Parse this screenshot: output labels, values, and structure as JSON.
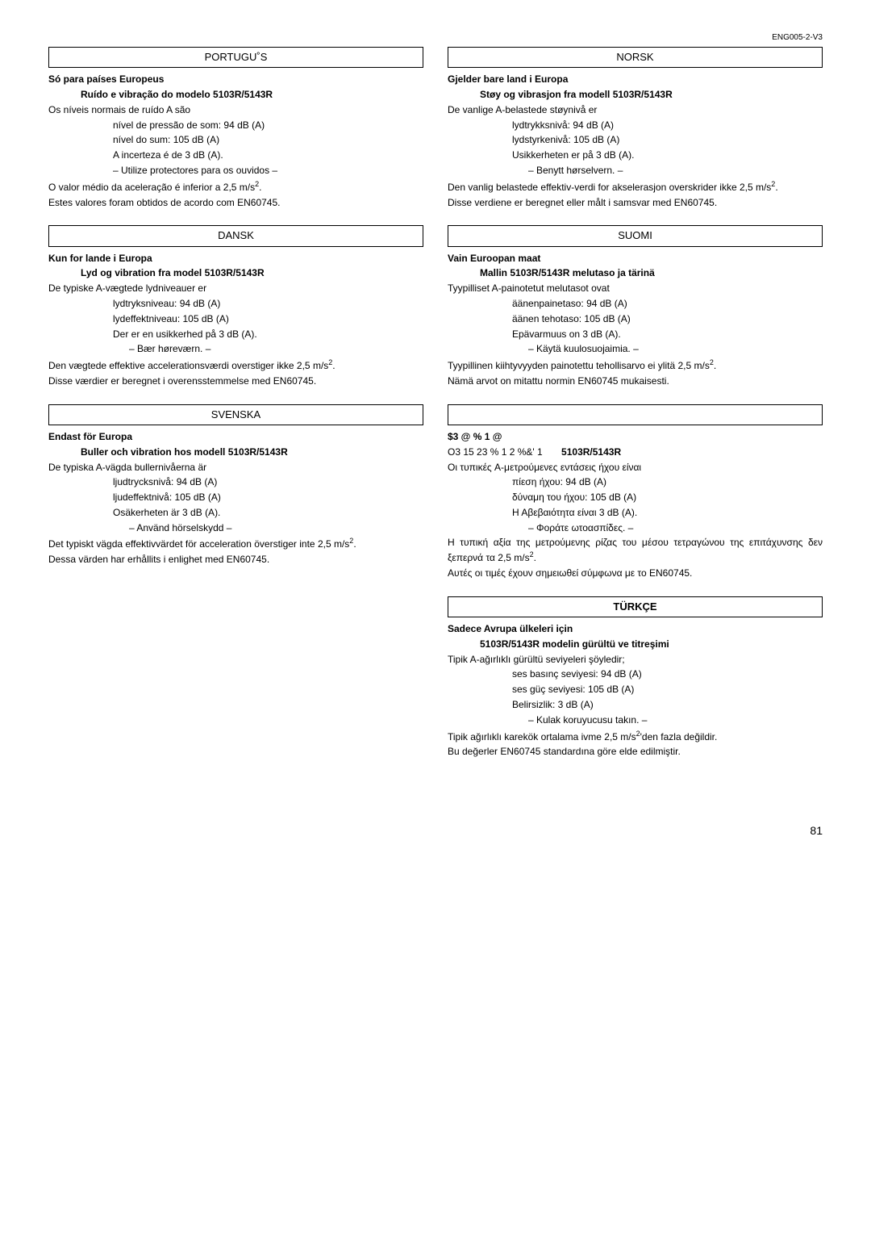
{
  "docref": "ENG005-2-V3",
  "pagenum": "81",
  "left": [
    {
      "lang": "PORTUGU˚S",
      "lang_bold": false,
      "h1": "Só para países Europeus",
      "h2": "Ruído e vibração do modelo 5103R/5143R",
      "intro": "Os níveis normais de ruído A são",
      "l1": "nível de pressão de som: 94 dB (A)",
      "l2": "nível do sum: 105 dB (A)",
      "l3": "A incerteza é de 3 dB (A).",
      "l4": "– Utilize protectores para os ouvidos –",
      "p2a": "O valor médio da aceleração é inferior a 2,5 m/s",
      "p2b": ".",
      "p3": "Estes valores foram obtidos de acordo com EN60745."
    },
    {
      "lang": "DANSK",
      "lang_bold": false,
      "h1": "Kun for lande i Europa",
      "h2": "Lyd og vibration fra model 5103R/5143R",
      "intro": "De typiske A-vægtede lydniveauer er",
      "l1": "lydtryksniveau: 94 dB (A)",
      "l2": "lydeffektniveau: 105 dB (A)",
      "l3": "Der er en usikkerhed på 3 dB (A).",
      "l4": "– Bær høreværn. –",
      "p2a": "Den vægtede effektive accelerationsværdi overstiger ikke 2,5 m/s",
      "p2b": ".",
      "p3": "Disse værdier er beregnet i overensstemmelse med EN60745."
    },
    {
      "lang": "SVENSKA",
      "lang_bold": false,
      "h1": "Endast för Europa",
      "h2": "Buller och vibration hos modell 5103R/5143R",
      "intro": "De typiska A-vägda bullernivåerna är",
      "l1": "ljudtrycksnivå: 94 dB (A)",
      "l2": "ljudeffektnivå: 105 dB (A)",
      "l3": "Osäkerheten är 3 dB (A).",
      "l4": "– Använd hörselskydd –",
      "p2a": "Det typiskt vägda effektivvärdet för acceleration överstiger inte 2,5 m/s",
      "p2b": ".",
      "p3": "Dessa värden har erhållits i enlighet med EN60745."
    }
  ],
  "right": [
    {
      "lang": "NORSK",
      "lang_bold": false,
      "h1": "Gjelder bare land i Europa",
      "h2": "Støy og vibrasjon fra modell 5103R/5143R",
      "intro": "De vanlige A-belastede støynivå er",
      "l1": "lydtrykksnivå: 94 dB (A)",
      "l2": "lydstyrkenivå: 105 dB (A)",
      "l3": "Usikkerheten er på 3 dB (A).",
      "l4": "– Benytt hørselvern. –",
      "p2a": "Den vanlig belastede effektiv-verdi for akselerasjon overskrider ikke 2,5 m/s",
      "p2b": ".",
      "p3": "Disse verdiene er beregnet eller målt i samsvar med EN60745."
    },
    {
      "lang": "SUOMI",
      "lang_bold": false,
      "h1": "Vain Euroopan maat",
      "h2": "Mallin 5103R/5143R melutaso ja tärinä",
      "intro": "Tyypilliset A-painotetut melutasot ovat",
      "l1": "äänenpainetaso: 94 dB (A)",
      "l2": "äänen tehotaso: 105 dB (A)",
      "l3": "Epävarmuus on 3 dB (A).",
      "l4": "– Käytä kuulosuojaimia. –",
      "p2a": "Tyypillinen kiihtyvyyden painotettu tehollisarvo ei ylitä 2,5 m/s",
      "p2b": ".",
      "p3": "Nämä arvot on mitattu normin EN60745 mukaisesti."
    },
    {
      "lang": "",
      "lang_bold": false,
      "h1": "$3      @   %   1 @",
      "h2pre": "O3 15          23  % 1 2  %&' 1",
      "h2model": "5103R/5143R",
      "intro": "Οι τυπικές A-μετρούμενες εντάσεις ήχου είναι",
      "l1": "πίεση ήχου: 94 dB (A)",
      "l2": "δύναμη του ήχου: 105 dB (A)",
      "l3": "Η Αβεβαιότητα είναι 3 dB (A).",
      "l4": "– Φοράτε ωτοασπίδες. –",
      "p2a": "Η τυπική αξία της μετρούμενης ρίζας του μέσου τετραγώνου της επιτάχυνσης δεν ξεπερνά τα 2,5 m/s",
      "p2b": ".",
      "p3": "Αυτές οι τιμές έχουν σημειωθεί σύμφωνα με το EN60745."
    },
    {
      "lang": "TÜRKÇE",
      "lang_bold": true,
      "h1": "Sadece Avrupa ülkeleri için",
      "h2": "5103R/5143R modelin gürültü ve titreşimi",
      "intro": "Tipik A-ağırlıklı gürültü seviyeleri şöyledir;",
      "l1": "ses basınç seviyesi: 94 dB (A)",
      "l2": "ses güç seviyesi: 105 dB (A)",
      "l3": "Belirsizlik: 3 dB (A)",
      "l4": "– Kulak koruyucusu takın. –",
      "p2a": "Tipik ağırlıklı karekök ortalama ivme 2,5 m/s",
      "p2b": "'den fazla değildir.",
      "p3": "Bu değerler EN60745 standardına göre elde edilmiştir."
    }
  ]
}
